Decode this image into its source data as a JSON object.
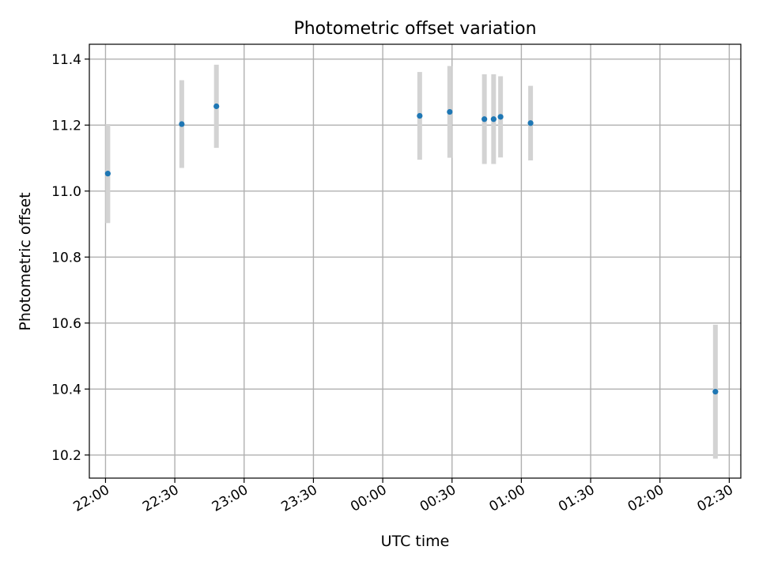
{
  "chart_data": {
    "type": "scatter",
    "title": "Photometric offset variation",
    "xlabel": "UTC time",
    "ylabel": "Photometric offset",
    "grid": true,
    "x_is_time": true,
    "xlim": [
      "21:53",
      "02:35"
    ],
    "ylim": [
      10.13,
      11.445
    ],
    "xticks": [
      "22:00",
      "22:30",
      "23:00",
      "23:30",
      "00:00",
      "00:30",
      "01:00",
      "01:30",
      "02:00",
      "02:30"
    ],
    "yticks": [
      10.2,
      10.4,
      10.6,
      10.8,
      11.0,
      11.2,
      11.4
    ],
    "ytick_labels": [
      "10.2",
      "10.4",
      "10.6",
      "10.8",
      "11.0",
      "11.2",
      "11.4"
    ],
    "colors": {
      "point": "#1f77b4",
      "errorbar": "#d3d3d3"
    },
    "points": [
      {
        "x": "22:01",
        "y": 11.053,
        "yerr": 0.15
      },
      {
        "x": "22:33",
        "y": 11.203,
        "yerr": 0.133
      },
      {
        "x": "22:48",
        "y": 11.257,
        "yerr": 0.126
      },
      {
        "x": "00:16",
        "y": 11.228,
        "yerr": 0.133
      },
      {
        "x": "00:29",
        "y": 11.24,
        "yerr": 0.139
      },
      {
        "x": "00:44",
        "y": 11.218,
        "yerr": 0.136
      },
      {
        "x": "00:48",
        "y": 11.218,
        "yerr": 0.136
      },
      {
        "x": "00:51",
        "y": 11.225,
        "yerr": 0.123
      },
      {
        "x": "01:04",
        "y": 11.206,
        "yerr": 0.113
      },
      {
        "x": "02:24",
        "y": 10.392,
        "yerr": 0.203
      }
    ]
  }
}
